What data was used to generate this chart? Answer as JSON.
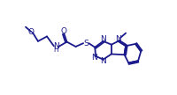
{
  "bg_color": "#ffffff",
  "line_color": "#1a1a8c",
  "text_color": "#1a1a8c",
  "line_width": 1.3,
  "font_size": 6.5,
  "figw": 2.01,
  "figh": 1.08,
  "dpi": 100
}
